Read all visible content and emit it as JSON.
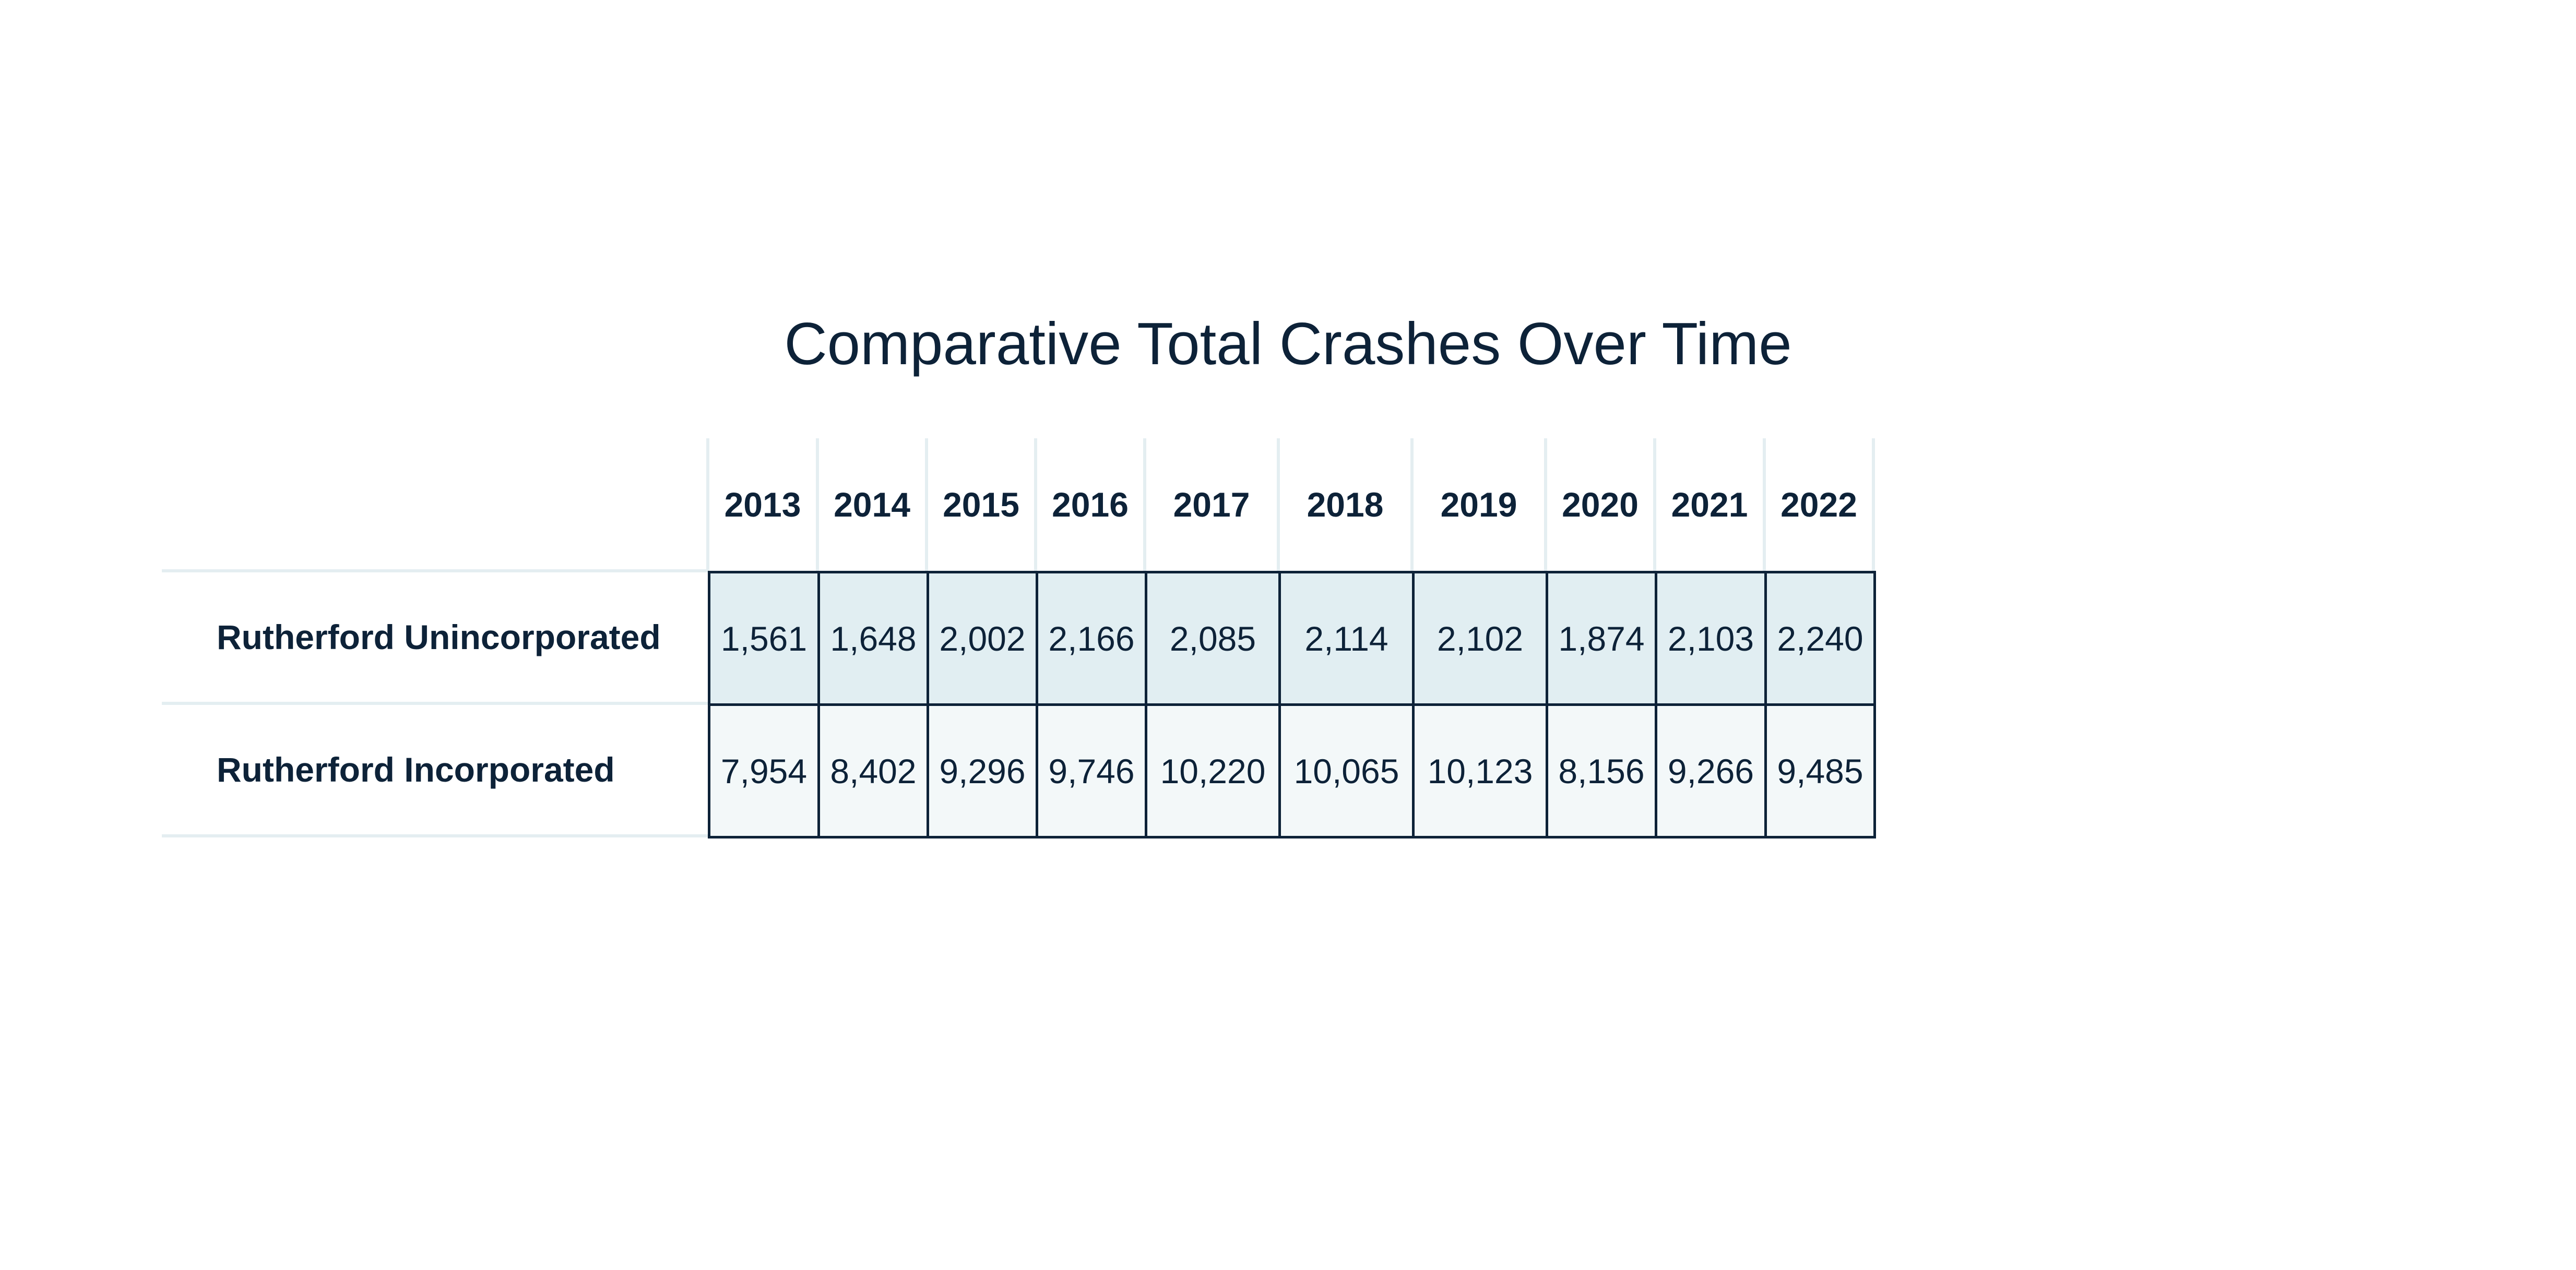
{
  "chart_data": {
    "type": "table",
    "title": "Comparative Total Crashes Over Time",
    "columns": [
      "2013",
      "2014",
      "2015",
      "2016",
      "2017",
      "2018",
      "2019",
      "2020",
      "2021",
      "2022"
    ],
    "rows": [
      {
        "label": "Rutherford Unincorporated",
        "values": [
          "1,561",
          "1,648",
          "2,002",
          "2,166",
          "2,085",
          "2,114",
          "2,102",
          "1,874",
          "2,103",
          "2,240"
        ]
      },
      {
        "label": "Rutherford Incorporated",
        "values": [
          "7,954",
          "8,402",
          "9,296",
          "9,746",
          "10,220",
          "10,065",
          "10,123",
          "8,156",
          "9,266",
          "9,485"
        ]
      }
    ],
    "colors": {
      "text": "#0d2238",
      "row1_fill": "#e1eef2",
      "row2_fill": "#f3f8f9",
      "border": "#0d2238",
      "light_rule": "#e4eef1"
    }
  }
}
